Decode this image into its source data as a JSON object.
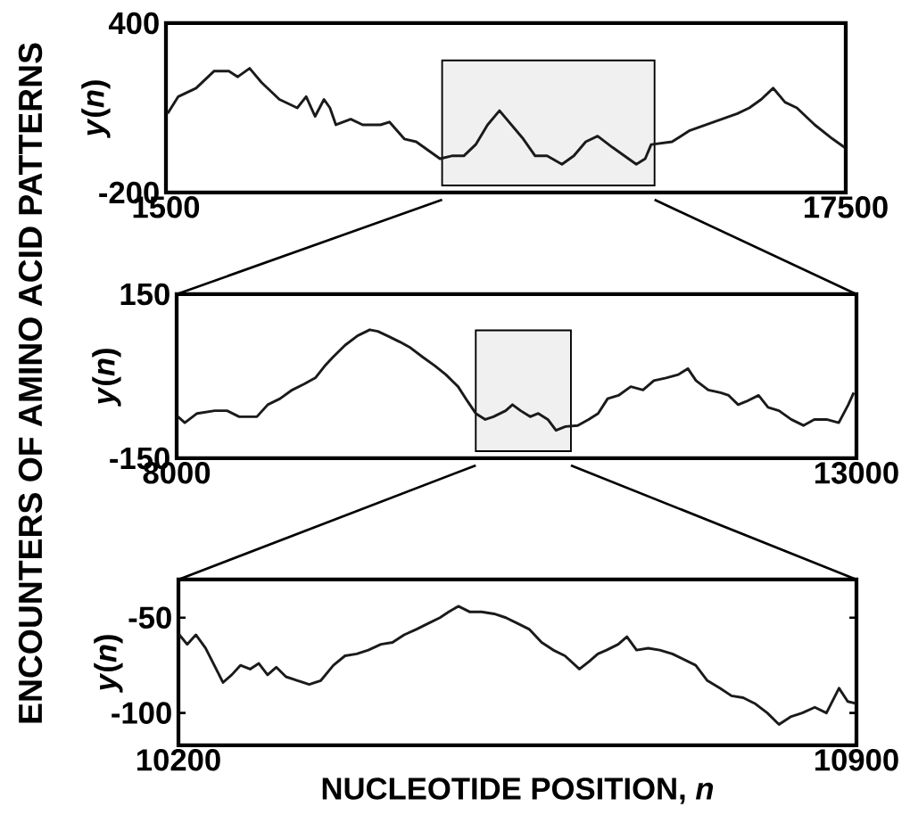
{
  "chart_data": [
    {
      "type": "line",
      "ylabel": "*y*(*n*)",
      "annotations": [
        "ENCOUNTERS OF AMINO ACID PATTERNS"
      ],
      "xlim": [
        1500,
        17500
      ],
      "ylim": [
        -200,
        400
      ],
      "xticks": [
        1500,
        17500
      ],
      "yticks": [
        -200,
        400
      ],
      "bands": [
        {
          "axis": "x",
          "from": 8000,
          "to": 13000
        }
      ],
      "color": "#1a1a1a",
      "x": [
        1540,
        1790,
        2210,
        2630,
        2980,
        3190,
        3470,
        3750,
        4170,
        4590,
        4800,
        5010,
        5220,
        5360,
        5500,
        5850,
        6130,
        6550,
        6760,
        7110,
        7390,
        7670,
        7950,
        8230,
        8510,
        8790,
        9070,
        9350,
        9630,
        9910,
        10190,
        10470,
        10820,
        11100,
        11380,
        11660,
        12010,
        12290,
        12570,
        12780,
        12920,
        13410,
        13830,
        14390,
        14950,
        15230,
        15510,
        15790,
        16070,
        16350,
        16770,
        17190,
        17470
      ],
      "values": [
        80,
        140,
        170,
        230,
        230,
        210,
        240,
        190,
        130,
        100,
        140,
        70,
        130,
        100,
        40,
        60,
        40,
        40,
        50,
        -10,
        -20,
        -50,
        -80,
        -70,
        -70,
        -30,
        40,
        90,
        40,
        -10,
        -70,
        -70,
        -100,
        -70,
        -20,
        0,
        -40,
        -70,
        -100,
        -80,
        -30,
        -20,
        20,
        50,
        80,
        100,
        130,
        170,
        120,
        100,
        40,
        -10,
        -40
      ]
    },
    {
      "type": "line",
      "ylabel": "*y*(*n*)",
      "xlim": [
        8000,
        13000
      ],
      "ylim": [
        -150,
        150
      ],
      "xticks": [
        8000,
        13000
      ],
      "yticks": [
        -150,
        150
      ],
      "bands": [
        {
          "axis": "x",
          "from": 10200,
          "to": 10900
        }
      ],
      "color": "#1a1a1a",
      "x": [
        8010,
        8060,
        8150,
        8280,
        8370,
        8460,
        8590,
        8670,
        8760,
        8850,
        8940,
        9020,
        9090,
        9150,
        9240,
        9330,
        9420,
        9480,
        9550,
        9640,
        9720,
        9810,
        9900,
        9980,
        10070,
        10140,
        10200,
        10270,
        10330,
        10420,
        10470,
        10530,
        10600,
        10660,
        10730,
        10790,
        10860,
        10950,
        11030,
        11100,
        11170,
        11250,
        11340,
        11430,
        11510,
        11600,
        11690,
        11760,
        11820,
        11910,
        12000,
        12060,
        12130,
        12190,
        12280,
        12350,
        12430,
        12520,
        12610,
        12690,
        12780,
        12870,
        12940,
        12980
      ],
      "values": [
        -74,
        -85,
        -68,
        -63,
        -63,
        -74,
        -74,
        -52,
        -41,
        -25,
        -14,
        -3,
        19,
        35,
        57,
        74,
        85,
        82,
        74,
        63,
        52,
        35,
        19,
        3,
        -19,
        -46,
        -68,
        -79,
        -74,
        -63,
        -52,
        -63,
        -74,
        -68,
        -79,
        -99,
        -92,
        -90,
        -79,
        -68,
        -41,
        -35,
        -19,
        -25,
        -8,
        -3,
        3,
        14,
        -8,
        -25,
        -30,
        -35,
        -52,
        -46,
        -35,
        -57,
        -63,
        -79,
        -90,
        -79,
        -79,
        -85,
        -52,
        -30
      ]
    },
    {
      "type": "line",
      "ylabel": "*y*(*n*)",
      "xlabel": "NUCLEOTIDE POSITION, *n*",
      "xlim": [
        10200,
        10900
      ],
      "ylim": [
        -117,
        -30
      ],
      "xticks": [
        10200,
        10900
      ],
      "yticks": [
        -100,
        -50
      ],
      "color": "#1a1a1a",
      "x": [
        10201,
        10209,
        10218,
        10228,
        10237,
        10246,
        10255,
        10264,
        10274,
        10283,
        10292,
        10301,
        10311,
        10323,
        10335,
        10347,
        10360,
        10372,
        10384,
        10396,
        10409,
        10421,
        10433,
        10446,
        10458,
        10470,
        10479,
        10489,
        10501,
        10513,
        10526,
        10538,
        10550,
        10562,
        10575,
        10587,
        10599,
        10614,
        10624,
        10633,
        10642,
        10654,
        10663,
        10673,
        10685,
        10697,
        10710,
        10722,
        10734,
        10746,
        10759,
        10771,
        10783,
        10795,
        10808,
        10820,
        10832,
        10844,
        10857,
        10869,
        10882,
        10891,
        10899
      ],
      "values": [
        -59,
        -64,
        -59,
        -66,
        -75,
        -84,
        -80,
        -75,
        -77,
        -74,
        -80,
        -76,
        -81,
        -83,
        -85,
        -83,
        -75,
        -70,
        -69,
        -67,
        -64,
        -63,
        -59,
        -56,
        -53,
        -50,
        -47,
        -44,
        -47,
        -47,
        -48,
        -50,
        -53,
        -56,
        -63,
        -67,
        -70,
        -77,
        -73,
        -69,
        -67,
        -64,
        -60,
        -67,
        -66,
        -67,
        -69,
        -72,
        -75,
        -83,
        -87,
        -91,
        -92,
        -95,
        -100,
        -106,
        -102,
        -100,
        -97,
        -100,
        -87,
        -94,
        -95
      ]
    }
  ]
}
